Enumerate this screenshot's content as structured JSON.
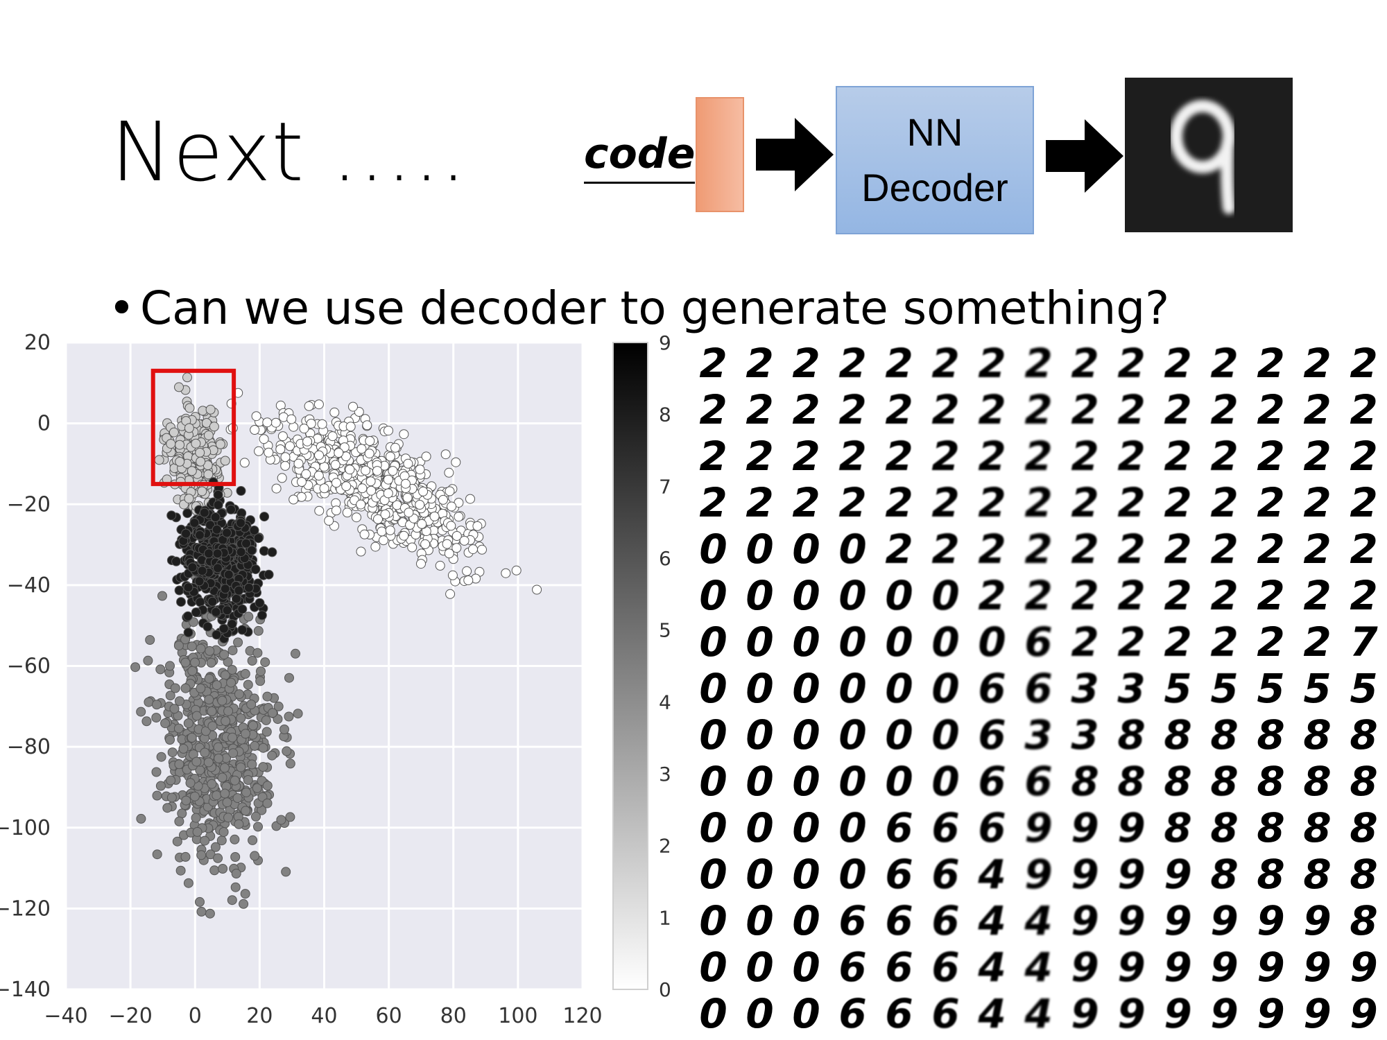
{
  "slide": {
    "title": "Next …..",
    "code_label": "code",
    "decoder_label_line1": "NN",
    "decoder_label_line2": "Decoder",
    "output_digit": "9",
    "bullet": "Can we use decoder to generate something?"
  },
  "colors": {
    "code_vector": "#f0a27f",
    "decoder_box": "#9fbde6",
    "highlight_box": "#e01010",
    "plot_background": "#e9e9f1"
  },
  "chart_data": [
    {
      "type": "scatter",
      "title": "",
      "xlabel": "",
      "ylabel": "",
      "xlim": [
        -40,
        120
      ],
      "ylim": [
        -140,
        20
      ],
      "xticks": [
        -40,
        -20,
        0,
        20,
        40,
        60,
        80,
        100,
        120
      ],
      "yticks": [
        20,
        0,
        -20,
        -40,
        -60,
        -80,
        -100,
        -120,
        -140
      ],
      "grid": true,
      "colorbar": {
        "range": [
          0,
          9
        ],
        "ticks": [
          9,
          8,
          7,
          6,
          5,
          4,
          3,
          2,
          1,
          0
        ],
        "colormap": "white-to-black"
      },
      "highlight_box": {
        "x_range": [
          -13,
          12
        ],
        "y_range": [
          -15,
          13
        ]
      },
      "clusters": [
        {
          "label_value": 0,
          "x_center": 55,
          "y_center": -15,
          "x_spread": 38,
          "y_spread": 14,
          "trend": "descending to the right"
        },
        {
          "label_value": 2,
          "x_center": 0,
          "y_center": -8,
          "x_spread": 10,
          "y_spread": 15
        },
        {
          "label_value": 5,
          "x_center": 8,
          "y_center": -80,
          "x_spread": 22,
          "y_spread": 35
        },
        {
          "label_value": 9,
          "x_center": 8,
          "y_center": -35,
          "x_spread": 14,
          "y_spread": 18
        }
      ]
    },
    {
      "type": "image-grid",
      "rows": 15,
      "columns": 15,
      "digit_rows": [
        "222222222222222",
        "222222222222222",
        "222222222222222",
        "222222222222222",
        "000022222222222",
        "000000222222222",
        "000000062222227",
        "000000663355555",
        "000000633888888",
        "000000668888888",
        "000066699988888",
        "000066499998888",
        "000666449999998",
        "000666449999999",
        "000666449999999"
      ]
    }
  ]
}
